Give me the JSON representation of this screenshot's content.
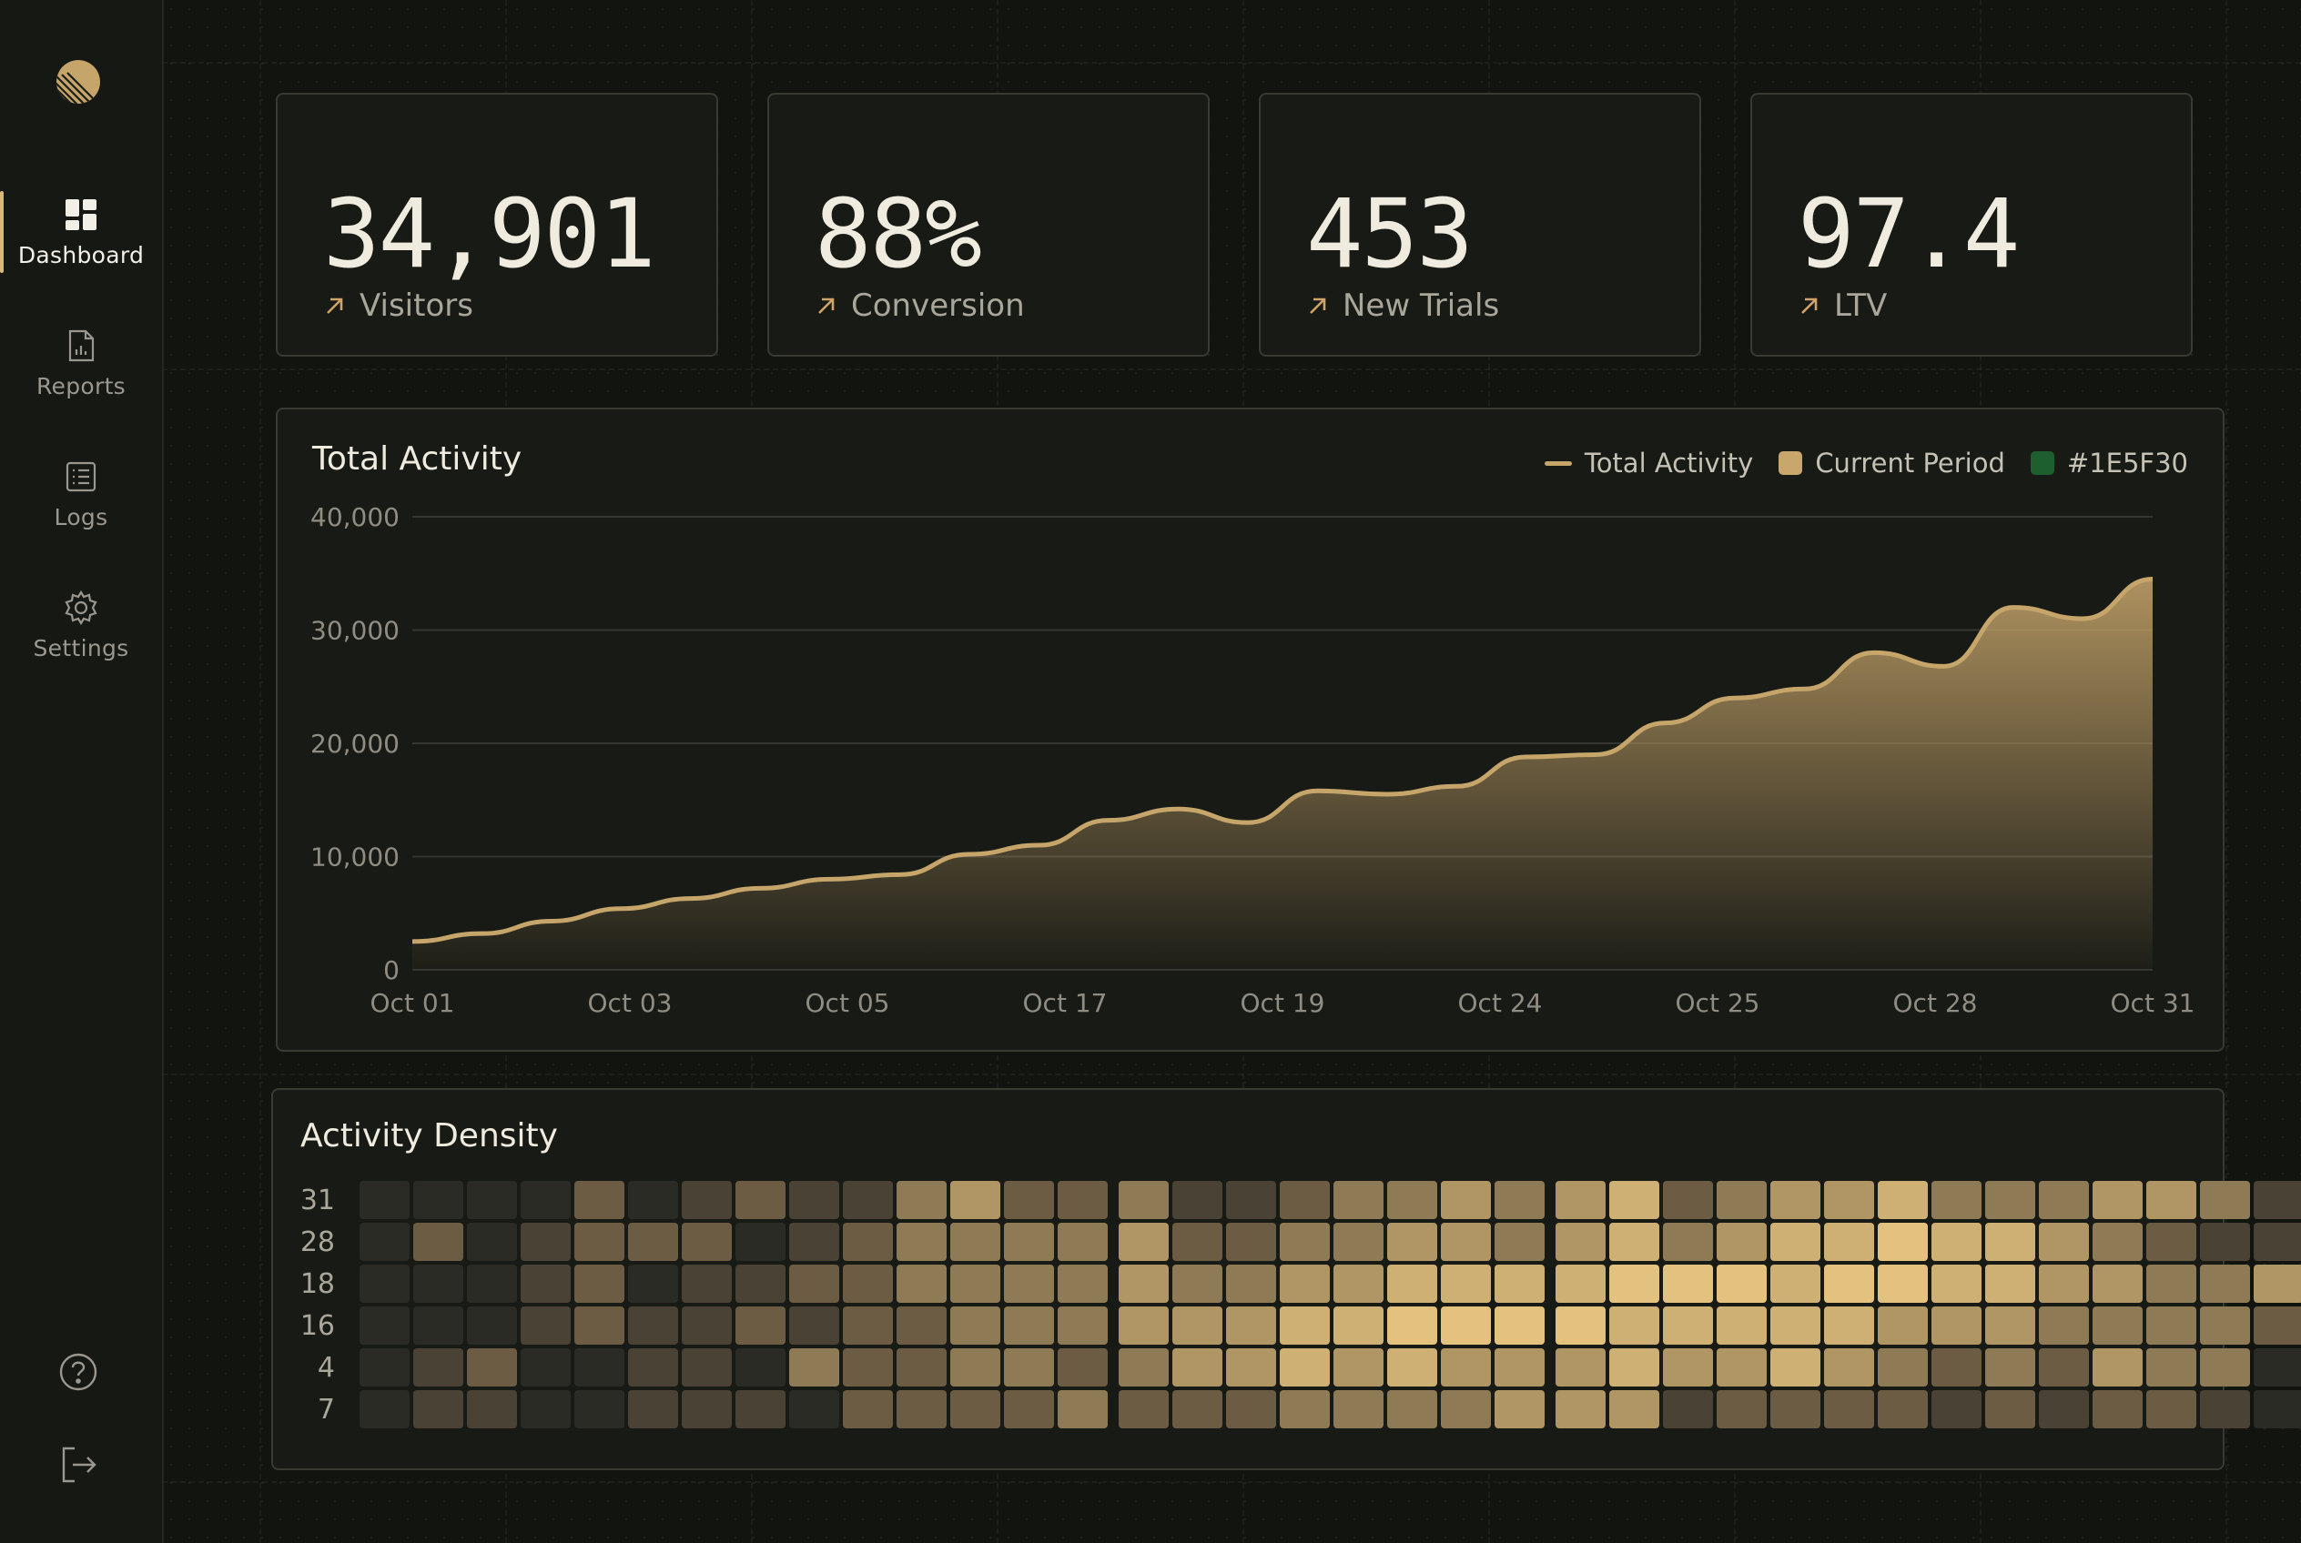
{
  "sidebar": {
    "logo_icon": "half-moon-logo",
    "items": [
      {
        "label": "Dashboard",
        "icon": "grid-icon",
        "active": true
      },
      {
        "label": "Reports",
        "icon": "report-document-icon",
        "active": false
      },
      {
        "label": "Logs",
        "icon": "list-document-icon",
        "active": false
      },
      {
        "label": "Settings",
        "icon": "gear-icon",
        "active": false
      }
    ],
    "bottom": [
      {
        "icon": "help-icon"
      },
      {
        "icon": "logout-icon"
      }
    ]
  },
  "kpis": [
    {
      "value": "34,901",
      "label": "Visitors",
      "icon": "trend-up-arrow-icon"
    },
    {
      "value": "88%",
      "label": "Conversion",
      "icon": "trend-up-arrow-icon"
    },
    {
      "value": "453",
      "label": "New Trials",
      "icon": "trend-up-arrow-icon"
    },
    {
      "value": "97.4",
      "label": "LTV",
      "icon": "trend-up-arrow-icon"
    }
  ],
  "colors": {
    "accent": "#c6a56a",
    "current_period": "#c8a66c",
    "third_swatch": "#1E5F30",
    "background": "#121410",
    "card": "#181a15"
  },
  "chart_data": {
    "type": "area",
    "title": "Total Activity",
    "legend": [
      {
        "label": "Total Activity",
        "kind": "line"
      },
      {
        "label": "Current Period",
        "kind": "box",
        "color": "#c8a66c"
      },
      {
        "label": "#1E5F30",
        "kind": "box",
        "color": "#1E5F30"
      }
    ],
    "x_ticks": [
      "Oct 01",
      "Oct 03",
      "Oct 05",
      "Oct 17",
      "Oct 19",
      "Oct 24",
      "Oct 25",
      "Oct 28",
      "Oct 31"
    ],
    "y_ticks": [
      "0",
      "10,000",
      "20,000",
      "30,000",
      "40,000"
    ],
    "ylim": [
      0,
      40000
    ],
    "grid": true,
    "series": [
      {
        "name": "Total Activity",
        "values": [
          2500,
          3200,
          4300,
          5400,
          6300,
          7200,
          8000,
          8400,
          10200,
          11000,
          13200,
          14200,
          13000,
          15800,
          15500,
          16200,
          18800,
          19000,
          21800,
          24000,
          24800,
          28000,
          26800,
          32000,
          31000,
          34500
        ]
      }
    ]
  },
  "density": {
    "title": "Activity Density",
    "row_labels": [
      "31",
      "28",
      "18",
      "16",
      "4",
      "7"
    ],
    "rows": [
      [
        1,
        1,
        1,
        1,
        3,
        1,
        2,
        3,
        2,
        2,
        4,
        5,
        3,
        3,
        4,
        2,
        2,
        3,
        4,
        4,
        5,
        4,
        5,
        6,
        3,
        4,
        5,
        5,
        6,
        4,
        4,
        4,
        5,
        5,
        4,
        2
      ],
      [
        1,
        3,
        1,
        2,
        3,
        3,
        3,
        1,
        2,
        3,
        4,
        4,
        4,
        4,
        5,
        3,
        3,
        4,
        4,
        5,
        5,
        4,
        5,
        6,
        4,
        5,
        6,
        6,
        7,
        6,
        6,
        5,
        4,
        3,
        2,
        2
      ],
      [
        1,
        1,
        1,
        2,
        3,
        1,
        2,
        2,
        3,
        3,
        4,
        4,
        4,
        4,
        5,
        4,
        4,
        5,
        5,
        6,
        6,
        6,
        6,
        7,
        7,
        7,
        6,
        7,
        7,
        6,
        6,
        5,
        5,
        4,
        4,
        5
      ],
      [
        1,
        1,
        1,
        2,
        3,
        2,
        2,
        3,
        2,
        3,
        3,
        4,
        4,
        4,
        5,
        5,
        5,
        6,
        6,
        7,
        7,
        7,
        7,
        6,
        6,
        6,
        6,
        6,
        5,
        5,
        5,
        4,
        4,
        4,
        4,
        3
      ],
      [
        1,
        2,
        3,
        1,
        1,
        2,
        2,
        1,
        4,
        3,
        3,
        4,
        4,
        3,
        4,
        5,
        5,
        6,
        5,
        6,
        5,
        5,
        5,
        6,
        5,
        5,
        6,
        5,
        4,
        3,
        4,
        3,
        5,
        4,
        4,
        1
      ],
      [
        1,
        2,
        2,
        1,
        1,
        2,
        2,
        2,
        1,
        3,
        3,
        3,
        3,
        4,
        3,
        3,
        3,
        4,
        4,
        4,
        4,
        5,
        5,
        5,
        2,
        3,
        3,
        3,
        3,
        2,
        3,
        2,
        3,
        3,
        2,
        1
      ]
    ]
  }
}
